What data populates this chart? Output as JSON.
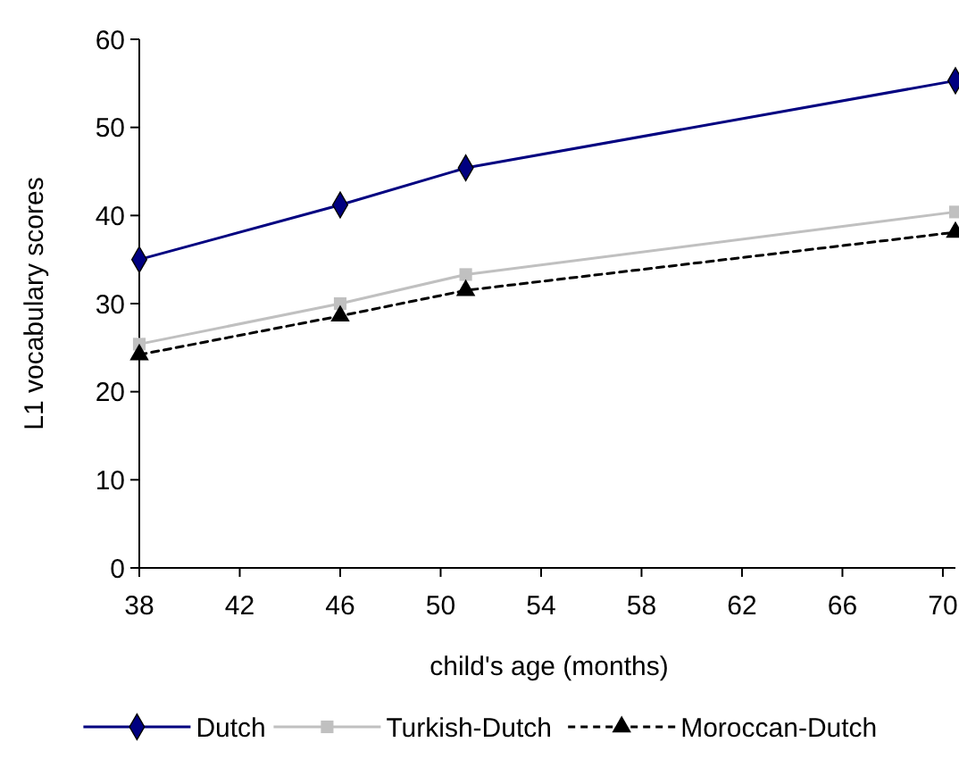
{
  "chart_data": {
    "type": "line",
    "xlabel": "child's age (months)",
    "ylabel": "L1 vocabulary scores",
    "x": [
      38,
      46,
      51,
      70.5
    ],
    "xlim": [
      38,
      70.5
    ],
    "xticks": [
      38,
      42,
      46,
      50,
      54,
      58,
      62,
      66,
      70
    ],
    "ylim": [
      0,
      60
    ],
    "yticks": [
      0,
      10,
      20,
      30,
      40,
      50,
      60
    ],
    "series": [
      {
        "name": "Dutch",
        "color": "#000080",
        "marker": "diamond",
        "line_style": "solid",
        "values": [
          35,
          41.2,
          45.4,
          55.3
        ]
      },
      {
        "name": "Turkish-Dutch",
        "color": "#c0c0c0",
        "marker": "square",
        "line_style": "solid",
        "values": [
          25.4,
          30,
          33.3,
          40.4
        ]
      },
      {
        "name": "Moroccan-Dutch",
        "color": "#000000",
        "marker": "triangle",
        "line_style": "dashed",
        "values": [
          24.2,
          28.6,
          31.5,
          38.1
        ]
      }
    ],
    "legend": "bottom",
    "grid": false
  }
}
